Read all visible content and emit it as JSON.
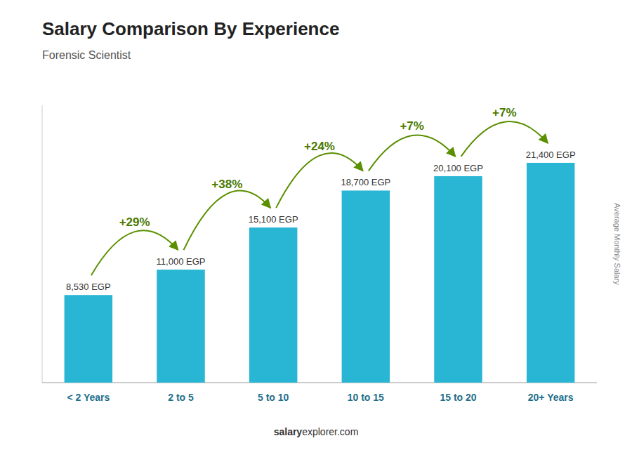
{
  "chart_data": {
    "type": "bar",
    "title": "Salary Comparison By Experience",
    "subtitle": "Forensic Scientist",
    "categories": [
      "< 2 Years",
      "2 to 5",
      "5 to 10",
      "10 to 15",
      "15 to 20",
      "20+ Years"
    ],
    "values": [
      8530,
      11000,
      15100,
      18700,
      20100,
      21400
    ],
    "value_labels": [
      "8,530 EGP",
      "11,000 EGP",
      "15,100 EGP",
      "18,700 EGP",
      "20,100 EGP",
      "21,400 EGP"
    ],
    "data_labels": true,
    "annotations": [
      "+29%",
      "+38%",
      "+24%",
      "+7%",
      "+7%"
    ],
    "ylabel": "Average Monthly Salary",
    "footer": [
      "salary",
      "explorer.com"
    ],
    "color": "#29b6d4",
    "ylim": [
      0,
      27000
    ],
    "tick_labels": "x"
  }
}
